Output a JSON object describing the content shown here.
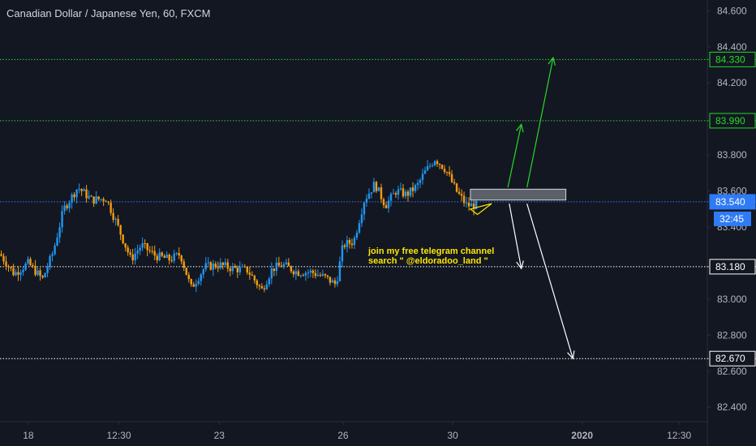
{
  "header": {
    "title": "Canadian Dollar / Japanese Yen, 60, FXCM"
  },
  "annotation": {
    "line1": "join my free telegram channel",
    "line2": "search \" @eldoradoo_land \""
  },
  "countdown": "32:45",
  "colors": {
    "background": "#131722",
    "axis": "#2a2e39",
    "text": "#b2b5be",
    "up": "#2196f3",
    "down": "#f39c12",
    "green": "#27d927",
    "blue_line": "#2f7bf5",
    "white": "#ffffff",
    "annotation": "#ffe600",
    "label_bg": "#131722"
  },
  "chart_data": {
    "type": "candlestick",
    "title": "Canadian Dollar / Japanese Yen, 60, FXCM",
    "ylim": [
      82.32,
      84.66
    ],
    "y_ticks": [
      "84.600",
      "84.400",
      "84.200",
      "83.800",
      "83.600",
      "83.400",
      "83.000",
      "82.800",
      "82.600",
      "82.400"
    ],
    "x_ticks": [
      {
        "label": "18",
        "t": 0.04
      },
      {
        "label": "12:30",
        "t": 0.168
      },
      {
        "label": "23",
        "t": 0.31
      },
      {
        "label": "26",
        "t": 0.485
      },
      {
        "label": "30",
        "t": 0.64
      },
      {
        "label": "2020",
        "t": 0.823
      },
      {
        "label": "12:30",
        "t": 0.96
      }
    ],
    "levels": [
      {
        "value": 84.33,
        "label": "84.330",
        "color": "green",
        "style": "dotted"
      },
      {
        "value": 83.99,
        "label": "83.990",
        "color": "green",
        "style": "dotted"
      },
      {
        "value": 83.54,
        "label": "83.540",
        "color": "blue_line",
        "style": "dotted"
      },
      {
        "value": 83.18,
        "label": "83.180",
        "color": "white",
        "style": "dotted"
      },
      {
        "value": 82.67,
        "label": "82.670",
        "color": "white",
        "style": "dotted"
      }
    ],
    "path": [
      [
        0.0,
        83.25
      ],
      [
        0.02,
        83.14
      ],
      [
        0.04,
        83.2
      ],
      [
        0.06,
        83.11
      ],
      [
        0.075,
        83.26
      ],
      [
        0.09,
        83.5
      ],
      [
        0.11,
        83.62
      ],
      [
        0.13,
        83.55
      ],
      [
        0.15,
        83.56
      ],
      [
        0.165,
        83.42
      ],
      [
        0.185,
        83.22
      ],
      [
        0.2,
        83.3
      ],
      [
        0.22,
        83.24
      ],
      [
        0.24,
        83.22
      ],
      [
        0.255,
        83.25
      ],
      [
        0.27,
        83.06
      ],
      [
        0.29,
        83.18
      ],
      [
        0.31,
        83.19
      ],
      [
        0.33,
        83.17
      ],
      [
        0.35,
        83.16
      ],
      [
        0.37,
        83.05
      ],
      [
        0.385,
        83.17
      ],
      [
        0.4,
        83.19
      ],
      [
        0.42,
        83.15
      ],
      [
        0.44,
        83.15
      ],
      [
        0.46,
        83.12
      ],
      [
        0.475,
        83.08
      ],
      [
        0.485,
        83.3
      ],
      [
        0.5,
        83.32
      ],
      [
        0.515,
        83.55
      ],
      [
        0.53,
        83.64
      ],
      [
        0.545,
        83.52
      ],
      [
        0.56,
        83.6
      ],
      [
        0.575,
        83.58
      ],
      [
        0.59,
        83.63
      ],
      [
        0.6,
        83.7
      ],
      [
        0.615,
        83.78
      ],
      [
        0.63,
        83.72
      ],
      [
        0.645,
        83.6
      ],
      [
        0.66,
        83.52
      ],
      [
        0.675,
        83.52
      ]
    ],
    "box": {
      "t0": 0.665,
      "t1": 0.8,
      "y_low": 83.55,
      "y_high": 83.61
    },
    "arrows": [
      {
        "from": [
          0.718,
          83.62
        ],
        "to": [
          0.737,
          83.97
        ],
        "color": "green"
      },
      {
        "from": [
          0.745,
          83.62
        ],
        "to": [
          0.782,
          84.34
        ],
        "color": "green"
      },
      {
        "from": [
          0.72,
          83.53
        ],
        "to": [
          0.737,
          83.17
        ],
        "color": "white"
      },
      {
        "from": [
          0.745,
          83.53
        ],
        "to": [
          0.81,
          82.67
        ],
        "color": "white"
      }
    ],
    "triangle": [
      [
        0.665,
        83.5
      ],
      [
        0.695,
        83.53
      ],
      [
        0.675,
        83.47
      ]
    ]
  }
}
